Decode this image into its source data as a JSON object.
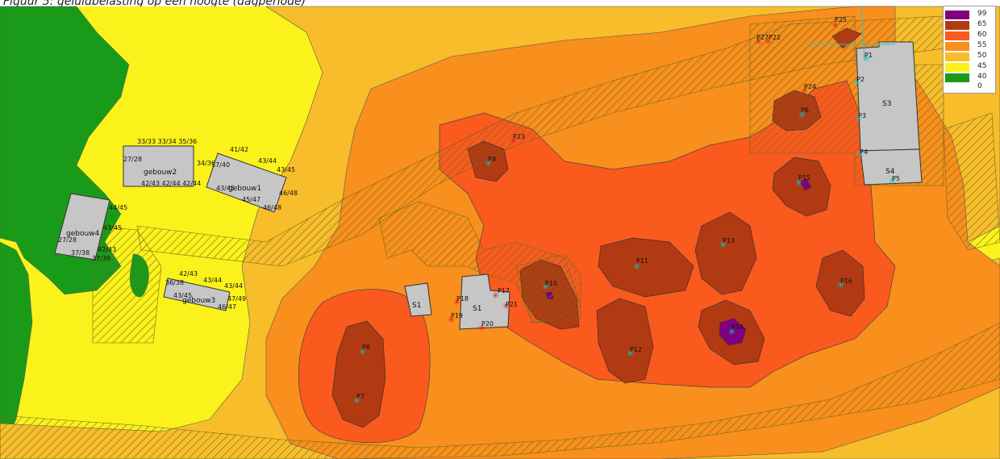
{
  "caption": "Figuur 5: geluidbelasting op een hoogte (dagperiode)",
  "legend": [
    {
      "label": "99",
      "color": "#800080"
    },
    {
      "label": "65",
      "color": "#b23a12"
    },
    {
      "label": "60",
      "color": "#fa5a1e"
    },
    {
      "label": "55",
      "color": "#f98f1c"
    },
    {
      "label": "50",
      "color": "#f8bd2b"
    },
    {
      "label": "45",
      "color": "#fbf21b"
    },
    {
      "label": "40",
      "color": "#199b19"
    },
    {
      "label": "0",
      "color": "#ffffff"
    }
  ],
  "buildings": {
    "gebouw1": "gebouw1",
    "gebouw2": "gebouw2",
    "gebouw3": "gebouw3",
    "gebouw4": "gebouw4",
    "s1a": "S1",
    "s1b": "S1",
    "s3": "S3",
    "s4": "S4"
  },
  "facade_labels": {
    "g2_top": "33/33 33/34 35/36",
    "g2_left": "27/28",
    "g2_bottom": "42/43 42/44 42/44",
    "g2_right": "34/36",
    "g1_a": "41/42",
    "g1_b": "37/40",
    "g1_c": "43/44",
    "g1_d": "43/45",
    "g1_e": "46/48",
    "g1_f": "45/47",
    "g1_g": "46/48",
    "g1_h": "43/45",
    "g4_a": "44/45",
    "g4_b": "43/45",
    "g4_c": "27/28",
    "g4_d": "42/43",
    "g4_e": "37/38",
    "g4_f": "37/39",
    "g3_a": "42/43",
    "g3_b": "43/44",
    "g3_c": "43/44",
    "g3_d": "36/38",
    "g3_e": "43/45",
    "g3_f": "47/49",
    "g3_g": "46/47"
  },
  "points": {
    "p1": "P1",
    "p2": "P2",
    "p3": "P3",
    "p4": "P4",
    "p5": "P5",
    "p6": "P6",
    "p7": "P7",
    "p8": "P8",
    "p9": "P9",
    "p10": "P10",
    "p11": "P11",
    "p12": "P12",
    "p13": "P13",
    "p14": "P14",
    "p15": "P15",
    "p16": "P16",
    "p17": "P17",
    "p18": "P18",
    "p19": "P19",
    "p20": "P20",
    "p21": "P21",
    "p22": "P22",
    "p23": "P23",
    "p24": "P24",
    "p25": "P25",
    "p27": "P27"
  }
}
